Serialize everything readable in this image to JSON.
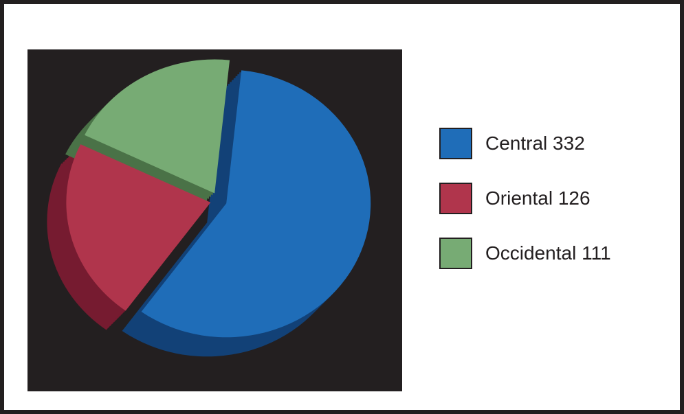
{
  "chart_data": {
    "type": "pie",
    "categories": [
      "Central",
      "Oriental",
      "Occidental"
    ],
    "values": [
      332,
      126,
      111
    ],
    "colors": [
      "#1f6db8",
      "#b0354c",
      "#77ab74"
    ],
    "side_colors": [
      "#124177",
      "#761b30",
      "#4a7247"
    ],
    "legend": "right"
  }
}
